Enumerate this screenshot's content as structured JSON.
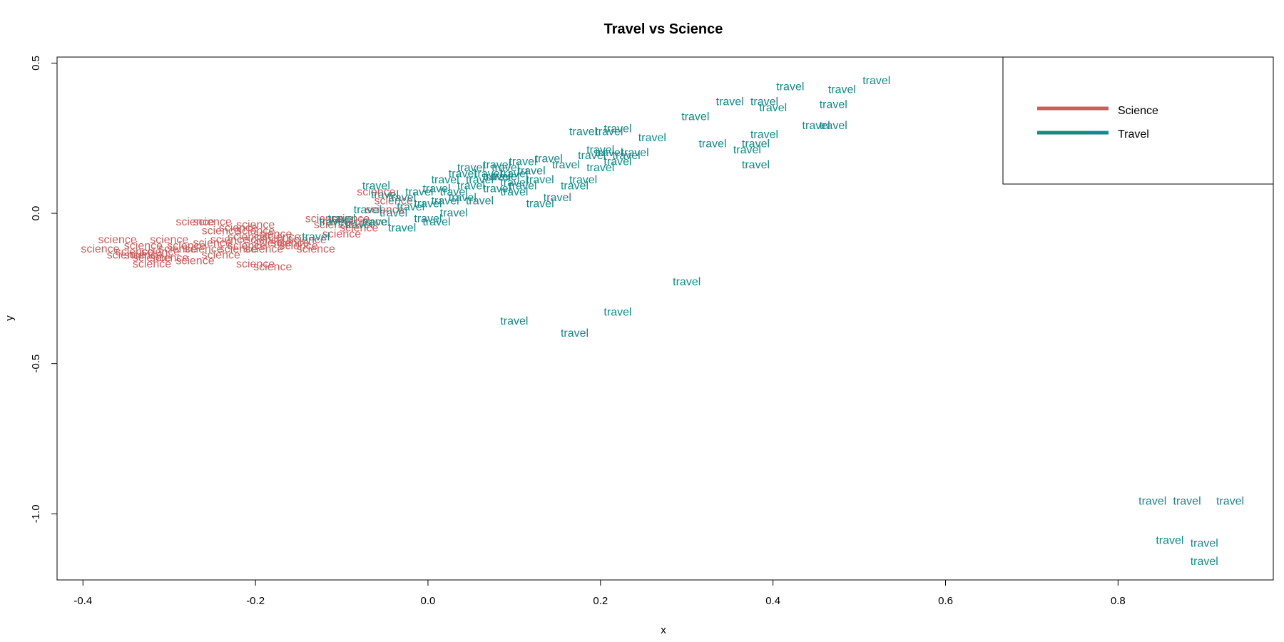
{
  "chart_data": {
    "type": "scatter",
    "title": "Travel vs Science",
    "xlabel": "x",
    "ylabel": "y",
    "xlim": [
      -0.43,
      0.98
    ],
    "ylim": [
      -1.22,
      0.52
    ],
    "xticks": [
      -0.4,
      -0.2,
      0.0,
      0.2,
      0.4,
      0.6,
      0.8
    ],
    "yticks": [
      -1.0,
      -0.5,
      0.0,
      0.5
    ],
    "grid": false,
    "legend_position": "top-right",
    "series": [
      {
        "name": "Science",
        "label": "science",
        "color": "#cd5c5c",
        "points": [
          [
            -0.38,
            -0.12
          ],
          [
            -0.36,
            -0.09
          ],
          [
            -0.35,
            -0.14
          ],
          [
            -0.34,
            -0.13
          ],
          [
            -0.33,
            -0.11
          ],
          [
            -0.33,
            -0.14
          ],
          [
            -0.32,
            -0.15
          ],
          [
            -0.32,
            -0.17
          ],
          [
            -0.31,
            -0.13
          ],
          [
            -0.3,
            -0.09
          ],
          [
            -0.3,
            -0.15
          ],
          [
            -0.29,
            -0.12
          ],
          [
            -0.28,
            -0.11
          ],
          [
            -0.27,
            -0.16
          ],
          [
            -0.26,
            -0.12
          ],
          [
            -0.25,
            -0.03
          ],
          [
            -0.25,
            -0.1
          ],
          [
            -0.24,
            -0.14
          ],
          [
            -0.24,
            -0.06
          ],
          [
            -0.23,
            -0.09
          ],
          [
            -0.22,
            -0.12
          ],
          [
            -0.22,
            -0.05
          ],
          [
            -0.21,
            -0.08
          ],
          [
            -0.21,
            -0.11
          ],
          [
            -0.2,
            -0.06
          ],
          [
            -0.2,
            -0.17
          ],
          [
            -0.19,
            -0.12
          ],
          [
            -0.19,
            -0.09
          ],
          [
            -0.18,
            -0.07
          ],
          [
            -0.18,
            -0.1
          ],
          [
            -0.18,
            -0.18
          ],
          [
            -0.17,
            -0.08
          ],
          [
            -0.16,
            -0.1
          ],
          [
            -0.15,
            -0.11
          ],
          [
            -0.14,
            -0.09
          ],
          [
            -0.13,
            -0.12
          ],
          [
            -0.12,
            -0.02
          ],
          [
            -0.11,
            -0.04
          ],
          [
            -0.1,
            -0.07
          ],
          [
            -0.09,
            -0.02
          ],
          [
            -0.08,
            -0.05
          ],
          [
            -0.07,
            -0.03
          ],
          [
            -0.06,
            0.07
          ],
          [
            -0.05,
            0.01
          ],
          [
            -0.04,
            0.04
          ],
          [
            -0.2,
            -0.04
          ],
          [
            -0.27,
            -0.03
          ]
        ]
      },
      {
        "name": "Travel",
        "label": "travel",
        "color": "#138a8a",
        "points": [
          [
            -0.13,
            -0.08
          ],
          [
            -0.11,
            -0.03
          ],
          [
            -0.1,
            -0.02
          ],
          [
            -0.08,
            -0.04
          ],
          [
            -0.07,
            0.01
          ],
          [
            -0.06,
            -0.03
          ],
          [
            -0.06,
            0.09
          ],
          [
            -0.05,
            0.06
          ],
          [
            -0.04,
            0.0
          ],
          [
            -0.03,
            0.05
          ],
          [
            -0.03,
            -0.05
          ],
          [
            -0.02,
            0.02
          ],
          [
            -0.01,
            0.07
          ],
          [
            0.0,
            -0.02
          ],
          [
            0.0,
            0.03
          ],
          [
            0.01,
            0.08
          ],
          [
            0.01,
            -0.03
          ],
          [
            0.02,
            0.04
          ],
          [
            0.02,
            0.11
          ],
          [
            0.03,
            0.07
          ],
          [
            0.03,
            0.0
          ],
          [
            0.04,
            0.13
          ],
          [
            0.04,
            0.05
          ],
          [
            0.05,
            0.09
          ],
          [
            0.05,
            0.15
          ],
          [
            0.06,
            0.11
          ],
          [
            0.06,
            0.04
          ],
          [
            0.07,
            0.13
          ],
          [
            0.08,
            0.08
          ],
          [
            0.08,
            0.16
          ],
          [
            0.09,
            0.12
          ],
          [
            0.09,
            0.15
          ],
          [
            0.1,
            0.07
          ],
          [
            0.1,
            0.13
          ],
          [
            0.11,
            0.17
          ],
          [
            0.11,
            0.09
          ],
          [
            0.12,
            0.14
          ],
          [
            0.13,
            0.03
          ],
          [
            0.13,
            0.11
          ],
          [
            0.14,
            0.18
          ],
          [
            0.15,
            0.05
          ],
          [
            0.16,
            0.16
          ],
          [
            0.17,
            0.09
          ],
          [
            0.18,
            0.11
          ],
          [
            0.18,
            0.27
          ],
          [
            0.19,
            0.19
          ],
          [
            0.2,
            0.21
          ],
          [
            0.2,
            0.15
          ],
          [
            0.21,
            0.27
          ],
          [
            0.21,
            0.2
          ],
          [
            0.22,
            0.28
          ],
          [
            0.22,
            0.17
          ],
          [
            0.23,
            0.19
          ],
          [
            0.24,
            0.2
          ],
          [
            0.26,
            0.25
          ],
          [
            0.31,
            0.32
          ],
          [
            0.33,
            0.23
          ],
          [
            0.35,
            0.37
          ],
          [
            0.37,
            0.21
          ],
          [
            0.38,
            0.23
          ],
          [
            0.38,
            0.16
          ],
          [
            0.39,
            0.37
          ],
          [
            0.39,
            0.26
          ],
          [
            0.4,
            0.35
          ],
          [
            0.42,
            0.42
          ],
          [
            0.45,
            0.29
          ],
          [
            0.47,
            0.36
          ],
          [
            0.47,
            0.29
          ],
          [
            0.48,
            0.41
          ],
          [
            0.52,
            0.44
          ],
          [
            0.08,
            0.12
          ],
          [
            0.1,
            0.1
          ],
          [
            0.3,
            -0.23
          ],
          [
            0.1,
            -0.36
          ],
          [
            0.17,
            -0.4
          ],
          [
            0.22,
            -0.33
          ],
          [
            0.84,
            -0.96
          ],
          [
            0.88,
            -0.96
          ],
          [
            0.93,
            -0.96
          ],
          [
            0.86,
            -1.09
          ],
          [
            0.9,
            -1.1
          ],
          [
            0.9,
            -1.16
          ]
        ]
      }
    ]
  }
}
